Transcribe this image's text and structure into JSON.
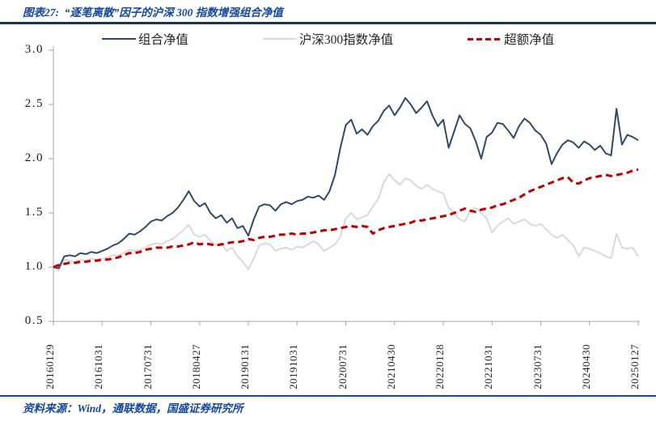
{
  "header": {
    "title": "图表27:  “逐笔离散”因子的沪深 300 指数增强组合净值"
  },
  "footer": {
    "source": "资料来源：Wind，通联数据，国盛证券研究所"
  },
  "colors": {
    "brand_blue": "#1448A0",
    "top_rule_navy": "#17365D",
    "bottom_rule_blue": "#1E4598",
    "axis_gray": "#A6A6A6",
    "portfolio_line": "#2D4A6B",
    "index_line": "#D9D9D9",
    "excess_line": "#C00000"
  },
  "chart_data": {
    "type": "line",
    "title": "“逐笔离散”因子的沪深300指数增强组合净值",
    "xlabel": "",
    "ylabel": "",
    "ylim": [
      0.5,
      3.0
    ],
    "y_ticks": [
      3.0,
      2.5,
      2.0,
      1.5,
      1.0,
      0.5
    ],
    "grid": false,
    "legend_position": "top",
    "x_unit": "monthly (2016-01 to 2025-01, 109 points)",
    "x_tick_labels": [
      "20160129",
      "20161031",
      "20170731",
      "20180427",
      "20190131",
      "20191031",
      "20200731",
      "20210430",
      "20220128",
      "20221031",
      "20230731",
      "20240430",
      "20250127"
    ],
    "x_tick_indices": [
      0,
      9,
      18,
      27,
      36,
      45,
      54,
      63,
      72,
      81,
      90,
      99,
      108
    ],
    "series": [
      {
        "name": "组合净值",
        "color": "#2D4A6B",
        "dash": null,
        "width": 2,
        "values": [
          1.0,
          0.99,
          1.1,
          1.11,
          1.1,
          1.13,
          1.12,
          1.14,
          1.13,
          1.15,
          1.17,
          1.2,
          1.22,
          1.26,
          1.31,
          1.3,
          1.33,
          1.37,
          1.42,
          1.44,
          1.43,
          1.47,
          1.5,
          1.55,
          1.62,
          1.7,
          1.61,
          1.56,
          1.59,
          1.5,
          1.45,
          1.48,
          1.41,
          1.45,
          1.36,
          1.38,
          1.29,
          1.44,
          1.56,
          1.58,
          1.57,
          1.52,
          1.58,
          1.6,
          1.58,
          1.61,
          1.62,
          1.65,
          1.64,
          1.66,
          1.62,
          1.7,
          1.85,
          2.1,
          2.31,
          2.36,
          2.23,
          2.27,
          2.22,
          2.3,
          2.35,
          2.44,
          2.49,
          2.4,
          2.47,
          2.56,
          2.5,
          2.42,
          2.47,
          2.53,
          2.4,
          2.3,
          2.36,
          2.1,
          2.25,
          2.4,
          2.32,
          2.28,
          2.16,
          2.0,
          2.2,
          2.24,
          2.33,
          2.32,
          2.26,
          2.19,
          2.3,
          2.37,
          2.33,
          2.26,
          2.22,
          2.14,
          1.95,
          2.05,
          2.13,
          2.17,
          2.15,
          2.1,
          2.16,
          2.13,
          2.08,
          2.12,
          2.05,
          2.03,
          2.46,
          2.13,
          2.22,
          2.2,
          2.17
        ]
      },
      {
        "name": "沪深300指数净值",
        "color": "#D9D9D9",
        "dash": null,
        "width": 2,
        "values": [
          1.0,
          0.97,
          1.07,
          1.06,
          1.05,
          1.07,
          1.06,
          1.08,
          1.07,
          1.08,
          1.09,
          1.11,
          1.11,
          1.13,
          1.16,
          1.15,
          1.16,
          1.18,
          1.21,
          1.22,
          1.21,
          1.24,
          1.26,
          1.3,
          1.34,
          1.39,
          1.3,
          1.28,
          1.3,
          1.24,
          1.2,
          1.22,
          1.15,
          1.18,
          1.1,
          1.05,
          0.98,
          1.08,
          1.2,
          1.22,
          1.21,
          1.15,
          1.17,
          1.18,
          1.16,
          1.19,
          1.18,
          1.21,
          1.24,
          1.21,
          1.15,
          1.18,
          1.21,
          1.28,
          1.45,
          1.5,
          1.44,
          1.46,
          1.48,
          1.56,
          1.63,
          1.78,
          1.86,
          1.8,
          1.76,
          1.82,
          1.8,
          1.75,
          1.72,
          1.76,
          1.72,
          1.7,
          1.68,
          1.55,
          1.5,
          1.44,
          1.42,
          1.52,
          1.55,
          1.5,
          1.45,
          1.32,
          1.38,
          1.42,
          1.45,
          1.4,
          1.42,
          1.44,
          1.4,
          1.38,
          1.4,
          1.35,
          1.3,
          1.27,
          1.3,
          1.25,
          1.2,
          1.1,
          1.18,
          1.17,
          1.15,
          1.13,
          1.1,
          1.08,
          1.31,
          1.18,
          1.17,
          1.18,
          1.1
        ]
      },
      {
        "name": "超额净值",
        "color": "#C00000",
        "dash": "8 5",
        "width": 3,
        "values": [
          1.0,
          1.02,
          1.03,
          1.04,
          1.04,
          1.05,
          1.05,
          1.06,
          1.06,
          1.07,
          1.07,
          1.08,
          1.09,
          1.11,
          1.13,
          1.13,
          1.14,
          1.16,
          1.17,
          1.18,
          1.18,
          1.18,
          1.19,
          1.19,
          1.2,
          1.21,
          1.23,
          1.21,
          1.22,
          1.21,
          1.2,
          1.21,
          1.22,
          1.23,
          1.23,
          1.24,
          1.26,
          1.25,
          1.27,
          1.28,
          1.28,
          1.29,
          1.3,
          1.3,
          1.31,
          1.3,
          1.31,
          1.31,
          1.32,
          1.33,
          1.34,
          1.34,
          1.35,
          1.36,
          1.37,
          1.38,
          1.37,
          1.38,
          1.37,
          1.31,
          1.34,
          1.36,
          1.37,
          1.38,
          1.39,
          1.4,
          1.41,
          1.43,
          1.43,
          1.44,
          1.45,
          1.46,
          1.47,
          1.48,
          1.5,
          1.52,
          1.54,
          1.52,
          1.51,
          1.53,
          1.54,
          1.55,
          1.57,
          1.58,
          1.6,
          1.62,
          1.64,
          1.67,
          1.7,
          1.72,
          1.74,
          1.76,
          1.78,
          1.8,
          1.82,
          1.83,
          1.78,
          1.77,
          1.8,
          1.82,
          1.83,
          1.84,
          1.85,
          1.84,
          1.85,
          1.86,
          1.87,
          1.89,
          1.9
        ]
      }
    ]
  }
}
